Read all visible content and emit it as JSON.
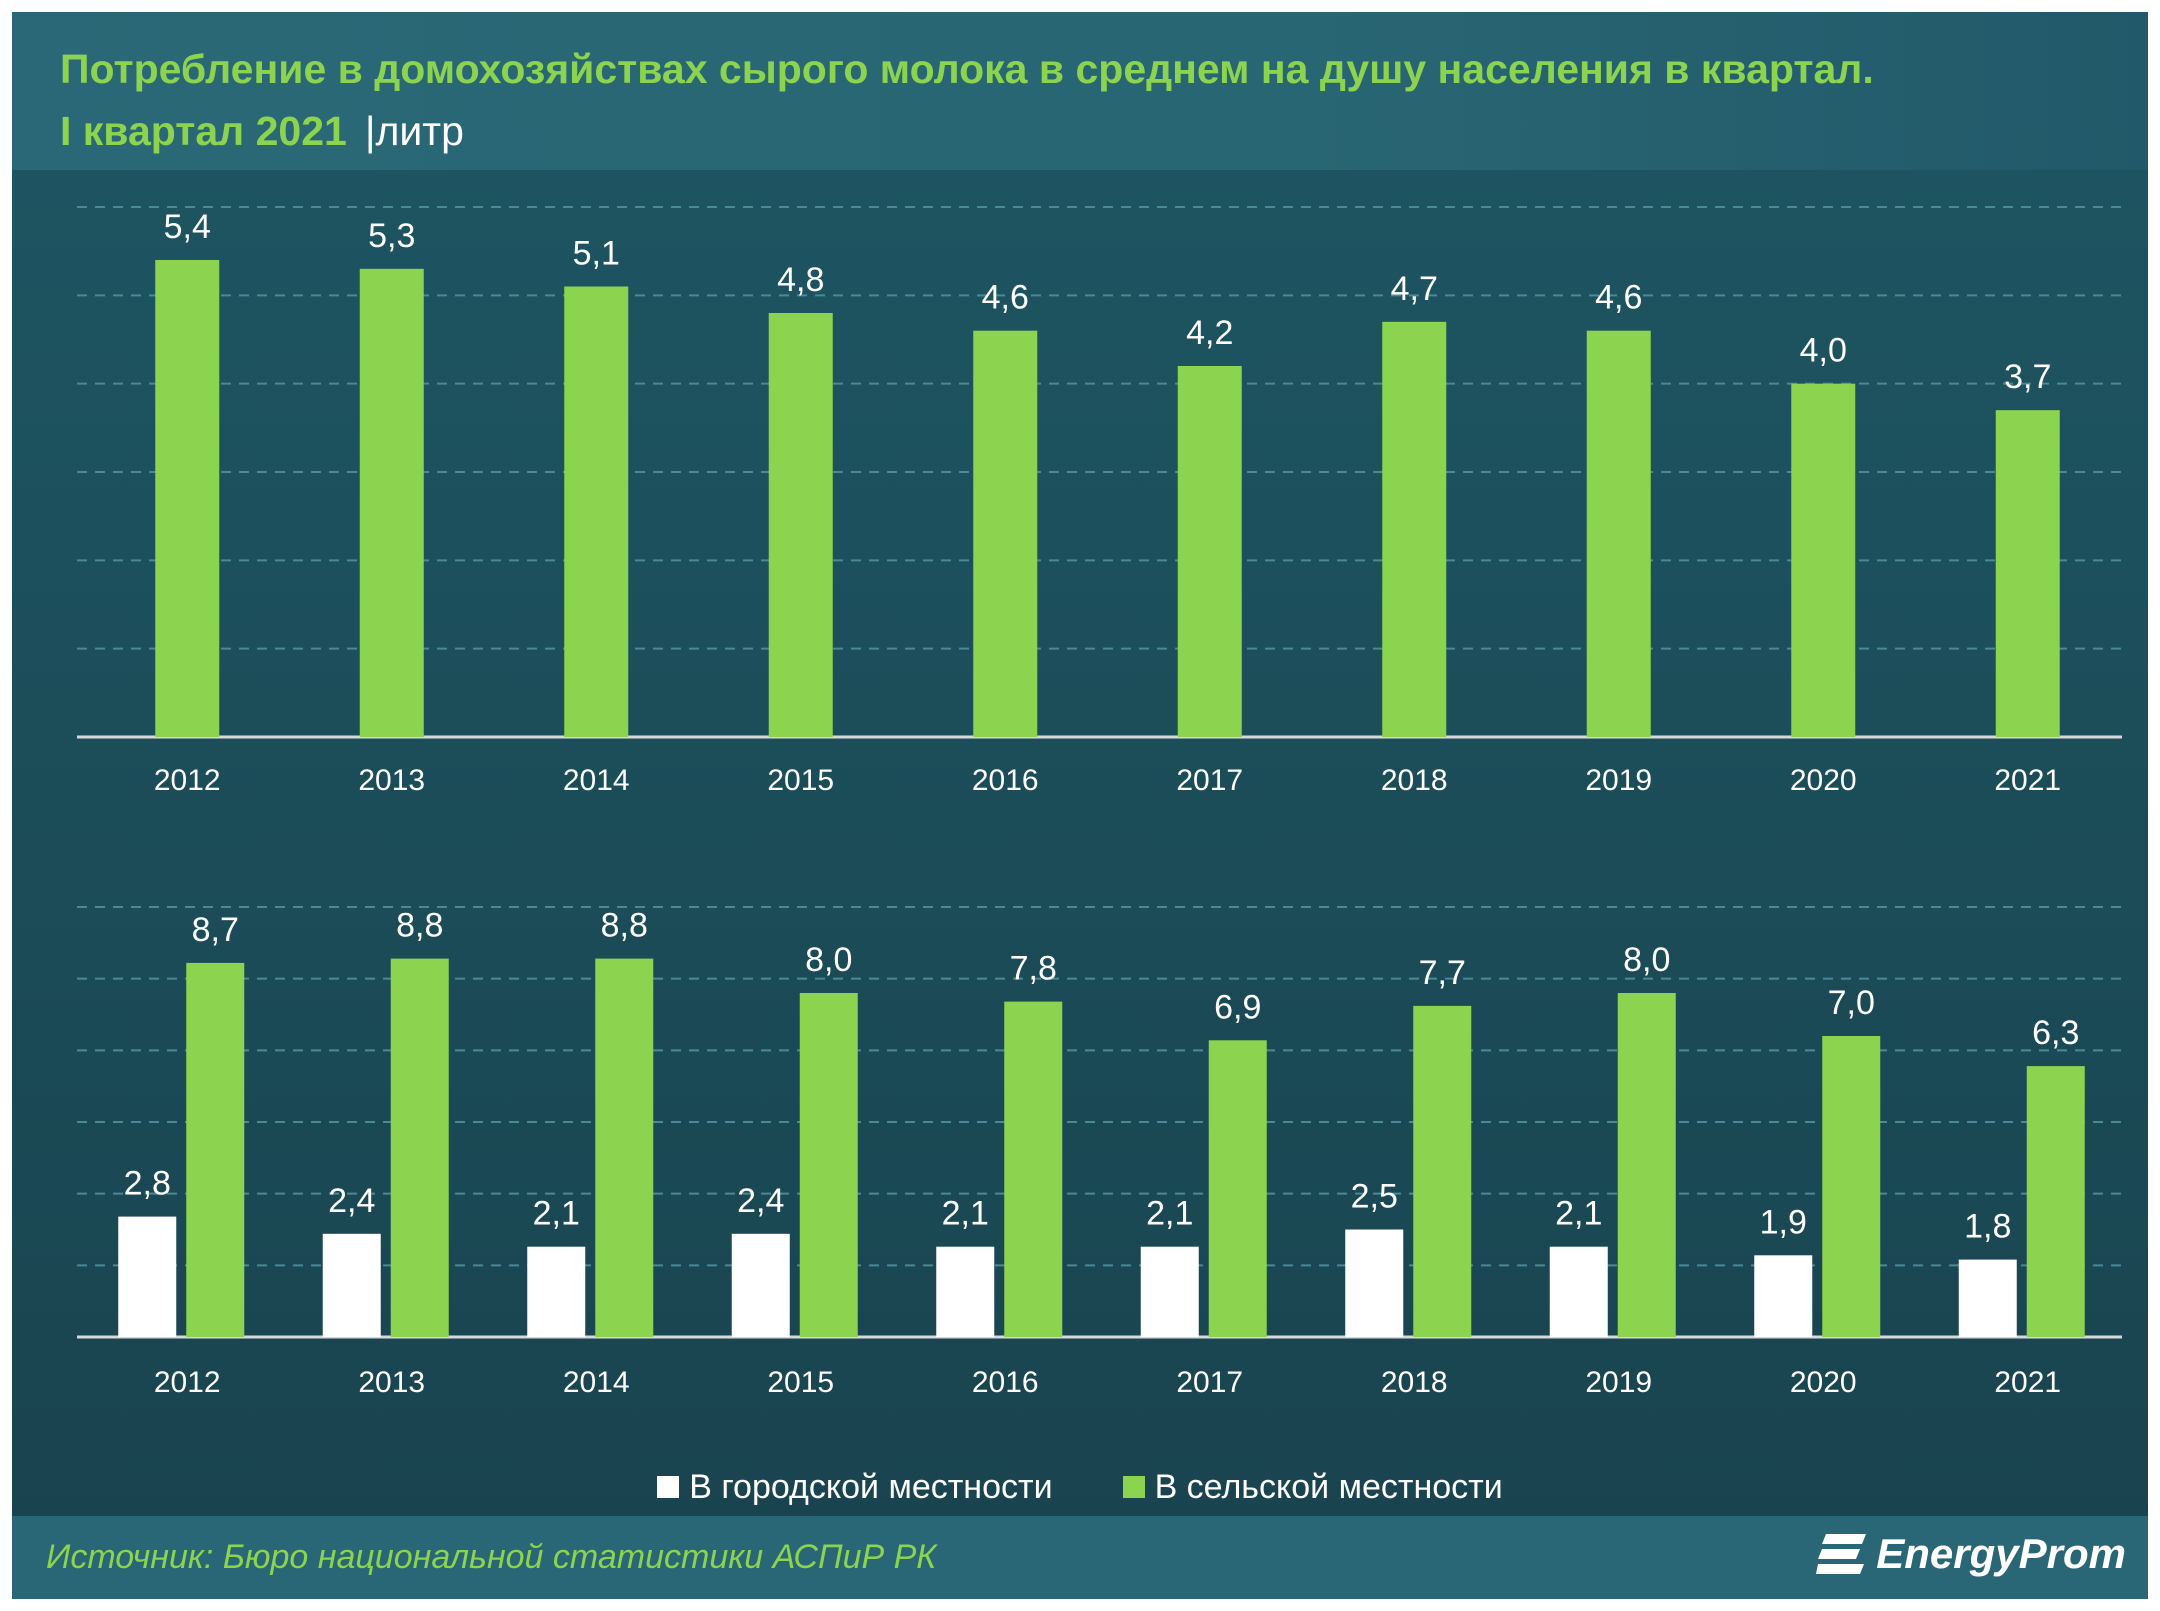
{
  "title": {
    "line1": "Потребление в домохозяйствах сырого молока в среднем на душу населения в квартал.",
    "line2": "I квартал 2021",
    "unit": "|литр"
  },
  "chart_data": [
    {
      "type": "bar",
      "categories": [
        "2012",
        "2013",
        "2014",
        "2015",
        "2016",
        "2017",
        "2018",
        "2019",
        "2020",
        "2021"
      ],
      "series": [
        {
          "values": [
            5.4,
            5.3,
            5.1,
            4.8,
            4.6,
            4.2,
            4.7,
            4.6,
            4.0,
            3.7
          ],
          "labels": [
            "5,4",
            "5,3",
            "5,1",
            "4,8",
            "4,6",
            "4,2",
            "4,7",
            "4,6",
            "4,0",
            "3,7"
          ]
        }
      ],
      "ylim": [
        0,
        6
      ],
      "grid": true,
      "colors": [
        "#8cd34f"
      ]
    },
    {
      "type": "bar",
      "categories": [
        "2012",
        "2013",
        "2014",
        "2015",
        "2016",
        "2017",
        "2018",
        "2019",
        "2020",
        "2021"
      ],
      "series": [
        {
          "name": "В городской местности",
          "values": [
            2.8,
            2.4,
            2.1,
            2.4,
            2.1,
            2.1,
            2.5,
            2.1,
            1.9,
            1.8
          ],
          "labels": [
            "2,8",
            "2,4",
            "2,1",
            "2,4",
            "2,1",
            "2,1",
            "2,5",
            "2,1",
            "1,9",
            "1,8"
          ]
        },
        {
          "name": "В сельской местности",
          "values": [
            8.7,
            8.8,
            8.8,
            8.0,
            7.8,
            6.9,
            7.7,
            8.0,
            7.0,
            6.3
          ],
          "labels": [
            "8,7",
            "8,8",
            "8,8",
            "8,0",
            "7,8",
            "6,9",
            "7,7",
            "8,0",
            "7,0",
            "6,3"
          ]
        }
      ],
      "ylim": [
        0,
        10
      ],
      "grid": true,
      "legend": "bottom",
      "colors": [
        "#ffffff",
        "#8cd34f"
      ]
    }
  ],
  "footer": {
    "source": "Источник: Бюро национальной  статистики АСПиР РК",
    "logo_text": "EnergyProm"
  }
}
